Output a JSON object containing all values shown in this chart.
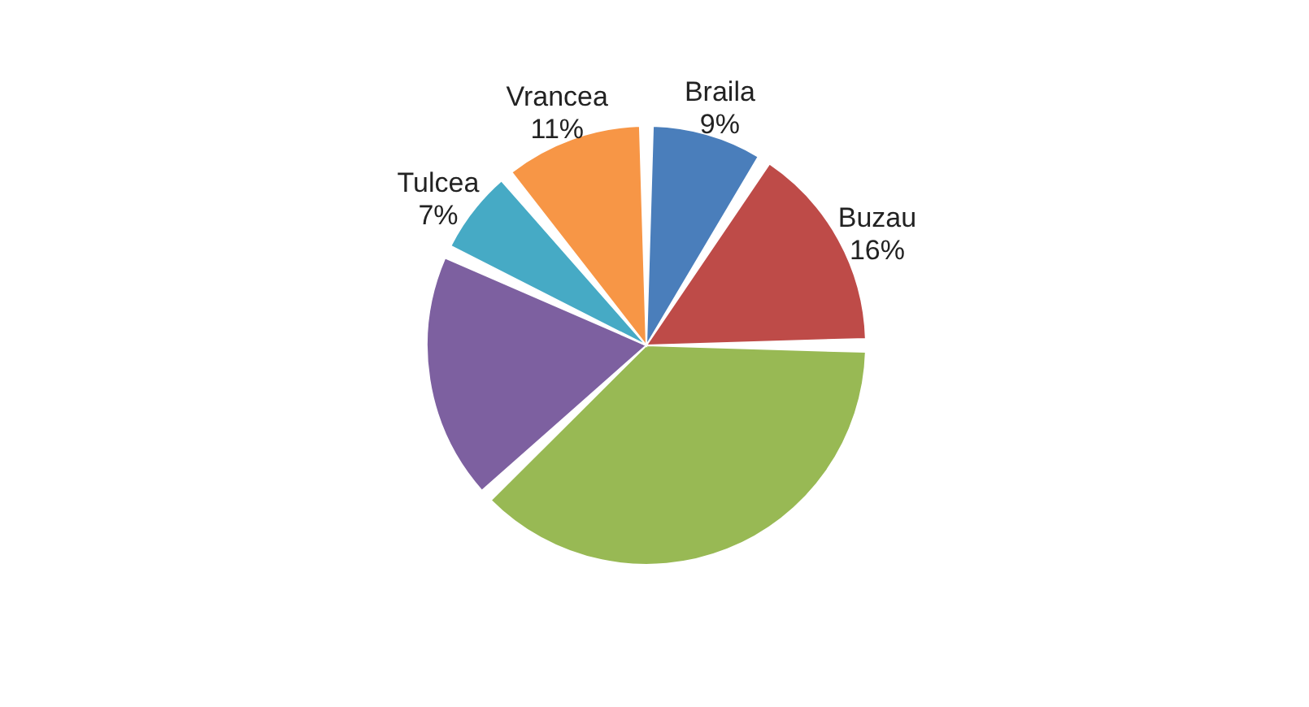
{
  "chart_data": {
    "type": "pie",
    "categories": [
      "Braila",
      "Buzau",
      null,
      null,
      "Tulcea",
      "Vrancea"
    ],
    "values": [
      9,
      16,
      38,
      19,
      7,
      11
    ],
    "colors": [
      "#4a7ebb",
      "#be4b48",
      "#98b954",
      "#7d60a0",
      "#46aac5",
      "#f79646"
    ],
    "value_labels": [
      "9%",
      "16%",
      null,
      null,
      "7%",
      "11%"
    ],
    "legend": false
  }
}
